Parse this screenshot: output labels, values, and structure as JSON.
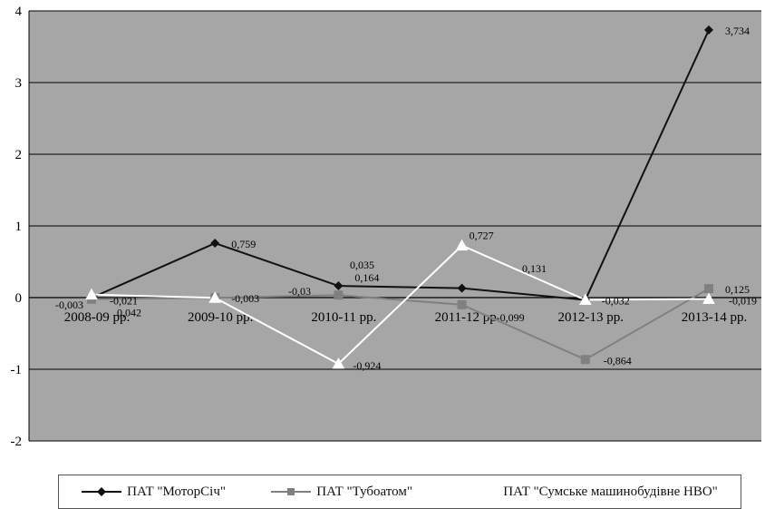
{
  "chart_data": {
    "type": "line",
    "categories": [
      "2008-09 рр.",
      "2009-10 рр.",
      "2010-11 рр.",
      "2011-12 рр.",
      "2012-13 рр.",
      "2013-14 рр."
    ],
    "ylim": [
      -2,
      4
    ],
    "yticks": [
      -2,
      -1,
      0,
      1,
      2,
      3,
      4
    ],
    "grid": true,
    "legend_position": "bottom",
    "plot_background": "#a6a6a6",
    "series": [
      {
        "name": "ПАТ \"МоторСіч\"",
        "marker": "diamond",
        "color": "#111111",
        "values": [
          -0.003,
          0.759,
          0.164,
          0.131,
          -0.032,
          3.734
        ],
        "labels": [
          "-0,003",
          "0,759",
          "0,164",
          "0,131",
          "-0,032",
          "3,734"
        ]
      },
      {
        "name": "ПАТ \"Тубоатом\"",
        "marker": "square",
        "color": "#808080",
        "values": [
          -0.021,
          -0.003,
          0.035,
          -0.099,
          -0.864,
          0.125
        ],
        "labels": [
          "-0,021",
          "-0,003",
          "0,035",
          "-0,099",
          "-0,864",
          "0,125"
        ]
      },
      {
        "name": "ПАТ \"Сумське машинобудівне НВО\"",
        "marker": "triangle",
        "color": "#ffffff",
        "values": [
          0.042,
          -0.003,
          -0.924,
          0.727,
          -0.032,
          -0.019
        ],
        "labels": [
          "0,042",
          "",
          "-0,924",
          "0,727",
          "",
          "-0,019"
        ]
      }
    ],
    "extra_labels": [
      "-0,03"
    ]
  }
}
